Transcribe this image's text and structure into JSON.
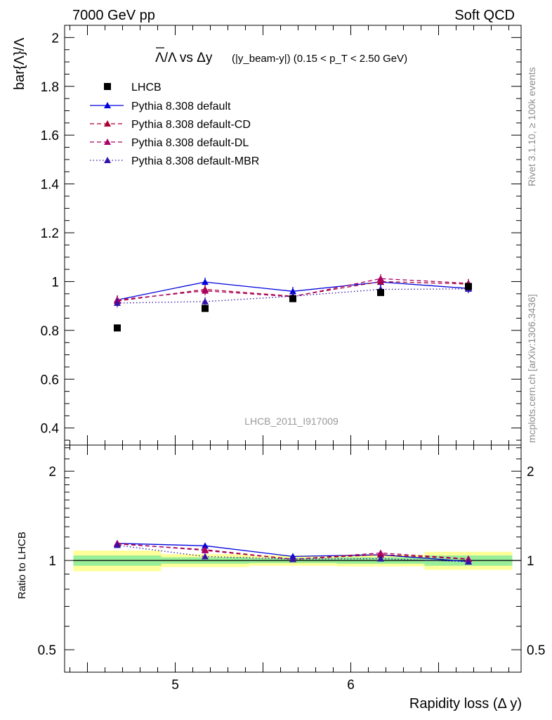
{
  "header": {
    "left": "7000 GeV pp",
    "right": "Soft QCD"
  },
  "side_labels": {
    "upper": "Rivet 3.1.10, ≥ 100k events",
    "lower": "mcplots.cern.ch [arXiv:1306.3436]"
  },
  "chart_data": [
    {
      "type": "scatter",
      "title": {
        "main": "Λ/Λ vs Δy",
        "detail": "(|y_beam-y|) (0.15 < p_T < 2.50 GeV)"
      },
      "ylabel": "bar{Λ}/Λ",
      "xlabel": "Rapidity loss (Δ y)",
      "watermark": "LHCB_2011_I917009",
      "xlim": [
        4.37,
        6.97
      ],
      "ylim": [
        0.33,
        2.05
      ],
      "x_ticks": [
        5,
        6
      ],
      "y_ticks": [
        0.4,
        0.6,
        0.8,
        1,
        1.2,
        1.4,
        1.6,
        1.8,
        2
      ],
      "x": [
        4.67,
        5.17,
        5.67,
        6.17,
        6.67
      ],
      "data_series": {
        "name": "LHCB",
        "color": "#000000",
        "values": [
          0.81,
          0.89,
          0.93,
          0.955,
          0.98
        ]
      },
      "series": [
        {
          "name": "Pythia 8.308 default",
          "color": "#0000dd",
          "dash": "solid",
          "values": [
            0.925,
            0.998,
            0.96,
            0.998,
            0.972
          ],
          "errors": [
            0.018,
            0.018,
            0.018,
            0.018,
            0.018
          ]
        },
        {
          "name": "Pythia 8.308 default-CD",
          "color": "#aa0033",
          "dash": "dashed",
          "values": [
            0.92,
            0.968,
            0.94,
            1.0,
            0.99
          ],
          "errors": [
            0.018,
            0.018,
            0.018,
            0.018,
            0.018
          ]
        },
        {
          "name": "Pythia 8.308 default-DL",
          "color": "#aa0066",
          "dash": "dashed",
          "values": [
            0.925,
            0.962,
            0.938,
            1.012,
            0.993
          ],
          "errors": [
            0.018,
            0.018,
            0.018,
            0.018,
            0.018
          ]
        },
        {
          "name": "Pythia 8.308 default-MBR",
          "color": "#3311aa",
          "dash": "dotted",
          "values": [
            0.912,
            0.918,
            0.94,
            0.968,
            0.97
          ],
          "errors": [
            0.018,
            0.018,
            0.018,
            0.018,
            0.018
          ]
        }
      ],
      "legend_position": "top-left"
    },
    {
      "type": "line",
      "ylabel": "Ratio to LHCB",
      "scale": "log",
      "ylim": [
        0.42,
        2.45
      ],
      "y_ticks": [
        0.5,
        1,
        2
      ],
      "x": [
        4.67,
        5.17,
        5.67,
        6.17,
        6.67
      ],
      "reference": 1,
      "bands": [
        {
          "x_range": [
            4.42,
            4.92
          ],
          "inner": [
            0.96,
            1.04
          ],
          "outer": [
            0.92,
            1.08
          ]
        },
        {
          "x_range": [
            4.92,
            5.42
          ],
          "inner": [
            0.975,
            1.025
          ],
          "outer": [
            0.95,
            1.05
          ]
        },
        {
          "x_range": [
            5.42,
            5.92
          ],
          "inner": [
            0.98,
            1.02
          ],
          "outer": [
            0.96,
            1.04
          ]
        },
        {
          "x_range": [
            5.92,
            6.42
          ],
          "inner": [
            0.975,
            1.025
          ],
          "outer": [
            0.955,
            1.045
          ]
        },
        {
          "x_range": [
            6.42,
            6.92
          ],
          "inner": [
            0.96,
            1.04
          ],
          "outer": [
            0.93,
            1.07
          ]
        }
      ],
      "series": [
        {
          "name": "Pythia 8.308 default",
          "color": "#0000dd",
          "dash": "solid",
          "values": [
            1.142,
            1.121,
            1.032,
            1.045,
            0.992
          ]
        },
        {
          "name": "Pythia 8.308 default-CD",
          "color": "#aa0033",
          "dash": "dashed",
          "values": [
            1.136,
            1.088,
            1.01,
            1.047,
            1.01
          ]
        },
        {
          "name": "Pythia 8.308 default-DL",
          "color": "#aa0066",
          "dash": "dashed",
          "values": [
            1.142,
            1.081,
            1.009,
            1.06,
            1.013
          ]
        },
        {
          "name": "Pythia 8.308 default-MBR",
          "color": "#3311aa",
          "dash": "dotted",
          "values": [
            1.126,
            1.031,
            1.011,
            1.014,
            0.99
          ]
        }
      ],
      "band_colors": {
        "inner": "#99ee99",
        "outer": "#ffff99"
      }
    }
  ]
}
